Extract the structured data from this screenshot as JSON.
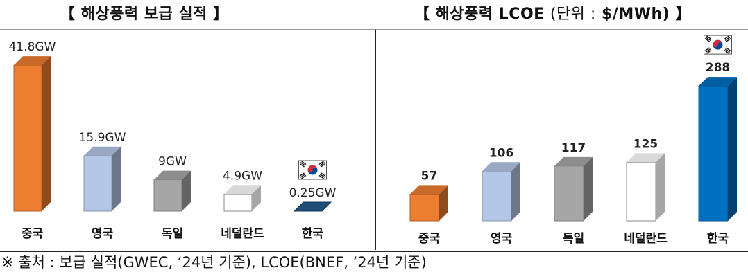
{
  "titles": {
    "left": "【 해상풍력 보급 실적 】",
    "right_main": "【 해상풍력 LCOE",
    "right_unit_open": "(단위 :",
    "right_unit_value": "$/MWh)",
    "right_close": "】"
  },
  "footer": "※ 출처 : 보급 실적(GWEC, ‘24년 기준), LCOE(BNEF, ’24년 기준)",
  "chart_data": [
    {
      "type": "bar",
      "title": "【 해상풍력 보급 실적 】",
      "categories": [
        "중국",
        "영국",
        "독일",
        "네덜란드",
        "한국"
      ],
      "values": [
        41.8,
        15.9,
        9,
        4.9,
        0.25
      ],
      "data_labels": [
        "41.8GW",
        "15.9GW",
        "9GW",
        "4.9GW",
        "0.25GW"
      ],
      "colors": [
        "#ED7D31",
        "#B4C7E7",
        "#A6A6A6",
        "#FFFFFF",
        "#1F4E79"
      ],
      "flag_category": "한국",
      "ylim": [
        0,
        45
      ],
      "grid": false,
      "legend": "none"
    },
    {
      "type": "bar",
      "title": "【 해상풍력 LCOE (단위 : $/MWh) 】",
      "categories": [
        "중국",
        "영국",
        "독일",
        "네덜란드",
        "한국"
      ],
      "values": [
        57,
        106,
        117,
        125,
        288
      ],
      "data_labels": [
        "57",
        "106",
        "117",
        "125",
        "288"
      ],
      "colors": [
        "#ED7D31",
        "#B4C7E7",
        "#A6A6A6",
        "#FFFFFF",
        "#0070C0"
      ],
      "flag_category": "한국",
      "ylim": [
        0,
        300
      ],
      "grid": false,
      "legend": "none"
    }
  ]
}
